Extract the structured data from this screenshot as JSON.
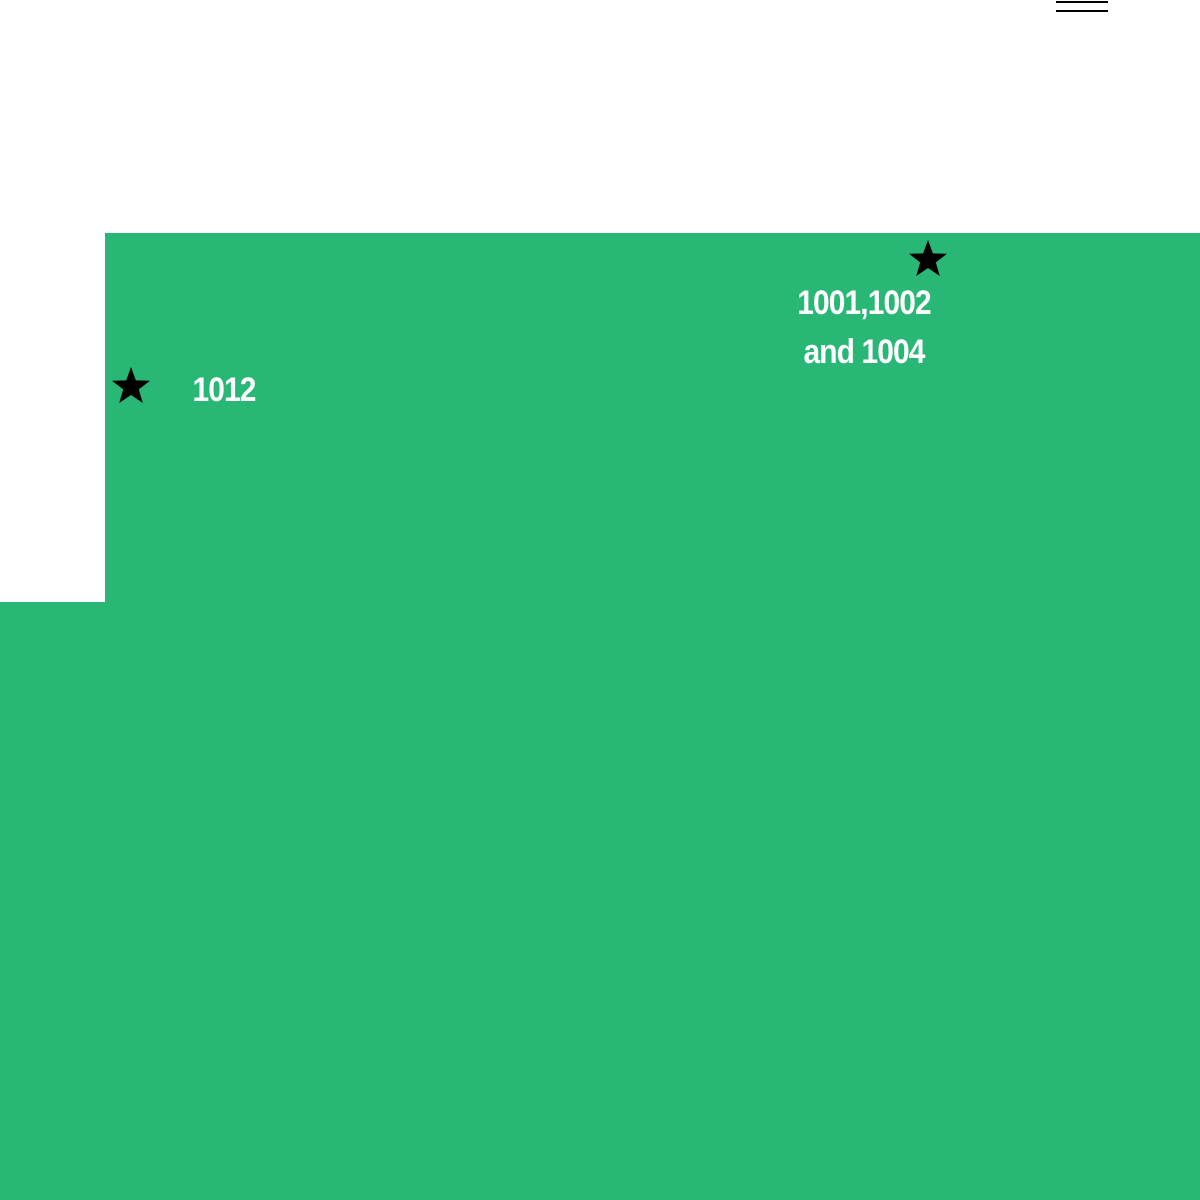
{
  "map": {
    "colors": {
      "region_fill": "#29b775",
      "background": "#ffffff",
      "marker": "#000000",
      "label_text": "#ffffff"
    },
    "markers": [
      {
        "id": "1012",
        "icon": "star-icon",
        "label_lines": [
          "1012"
        ]
      },
      {
        "id": "1001-1002-1004",
        "icon": "star-icon",
        "label_lines": [
          "1001,1002",
          "and 1004"
        ]
      }
    ]
  },
  "header": {
    "menu_icon": "menu-icon"
  }
}
